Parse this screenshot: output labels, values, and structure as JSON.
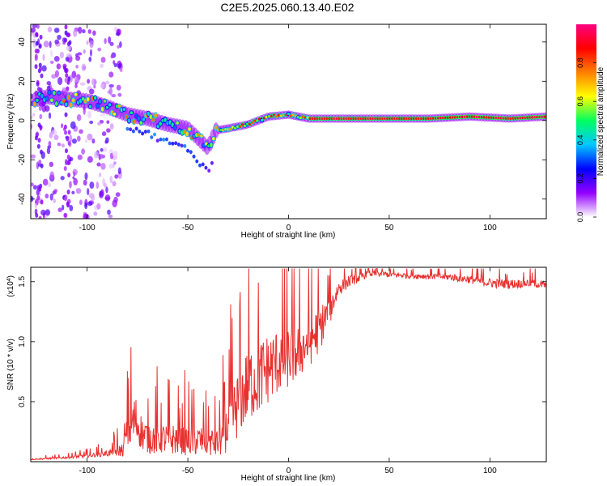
{
  "title": "C2E5.2025.060.13.40.E02",
  "chart_data": [
    {
      "type": "heatmap",
      "xlabel": "Height of straight line (km)",
      "ylabel": "Frequency (Hz)",
      "xlim": [
        -128,
        128
      ],
      "ylim": [
        -50,
        49
      ],
      "xticks": [
        -100,
        -50,
        0,
        50,
        100
      ],
      "yticks": [
        -40,
        -20,
        0,
        20,
        40
      ],
      "colorbar": {
        "label": "Normalized spectral amplitude",
        "range": [
          0,
          1
        ],
        "ticks": [
          "0.0",
          "0.2",
          "0.4",
          "0.6",
          "0.8"
        ],
        "colors": [
          "#ffffff",
          "#9400ff",
          "#0000ff",
          "#00c8ff",
          "#00ff60",
          "#ffff00",
          "#ff8000",
          "#ff0000",
          "#ff0080"
        ]
      },
      "ridge": {
        "x": [
          -128,
          -120,
          -110,
          -100,
          -90,
          -80,
          -70,
          -60,
          -50,
          -40,
          -36,
          -30,
          -20,
          -10,
          0,
          10,
          30,
          50,
          70,
          90,
          110,
          128
        ],
        "freq": [
          10,
          12,
          11,
          10,
          7,
          3,
          1,
          -2,
          -4,
          -14,
          -5,
          -4,
          -2,
          2,
          3,
          1,
          1,
          1,
          1,
          2,
          1,
          2
        ]
      }
    },
    {
      "type": "line",
      "xlabel": "Height of straight line (km)",
      "ylabel": "SNR (10 * v/v)",
      "y_multiplier": "(x10",
      "y_multiplier_exp": "4",
      "y_multiplier_close": ")",
      "xlim": [
        -128,
        128
      ],
      "ylim": [
        0,
        16200
      ],
      "xticks": [
        -100,
        -50,
        0,
        50,
        100
      ],
      "yticks_labels": [
        "0.5",
        "1.0",
        "1.5"
      ],
      "yticks_values": [
        5000,
        10000,
        15000
      ],
      "series": [
        {
          "color": "#e8312f",
          "x": [
            -128,
            -115,
            -100,
            -90,
            -82,
            -80,
            -76,
            -74,
            -72,
            -68,
            -60,
            -50,
            -40,
            -35,
            -32,
            -28,
            -24,
            -20,
            -15,
            -10,
            -5,
            0,
            5,
            10,
            15,
            20,
            25,
            30,
            40,
            50,
            60,
            70,
            80,
            90,
            100,
            110,
            120,
            128
          ],
          "y": [
            200,
            300,
            500,
            700,
            1000,
            2500,
            3500,
            2800,
            2200,
            2000,
            1900,
            1800,
            1700,
            1500,
            2200,
            3800,
            5200,
            6500,
            7000,
            7800,
            8400,
            8700,
            9200,
            10000,
            11000,
            12500,
            14500,
            15000,
            15700,
            15600,
            15500,
            15450,
            15400,
            15200,
            14900,
            14800,
            14900,
            14700
          ],
          "noise": [
            50,
            80,
            150,
            250,
            600,
            1800,
            2200,
            1600,
            1400,
            1400,
            1300,
            1300,
            1300,
            1200,
            1600,
            2500,
            3000,
            3200,
            3200,
            3000,
            2800,
            2600,
            2400,
            2200,
            2000,
            1400,
            700,
            500,
            300,
            250,
            250,
            250,
            300,
            350,
            400,
            400,
            350,
            350
          ]
        }
      ]
    }
  ]
}
